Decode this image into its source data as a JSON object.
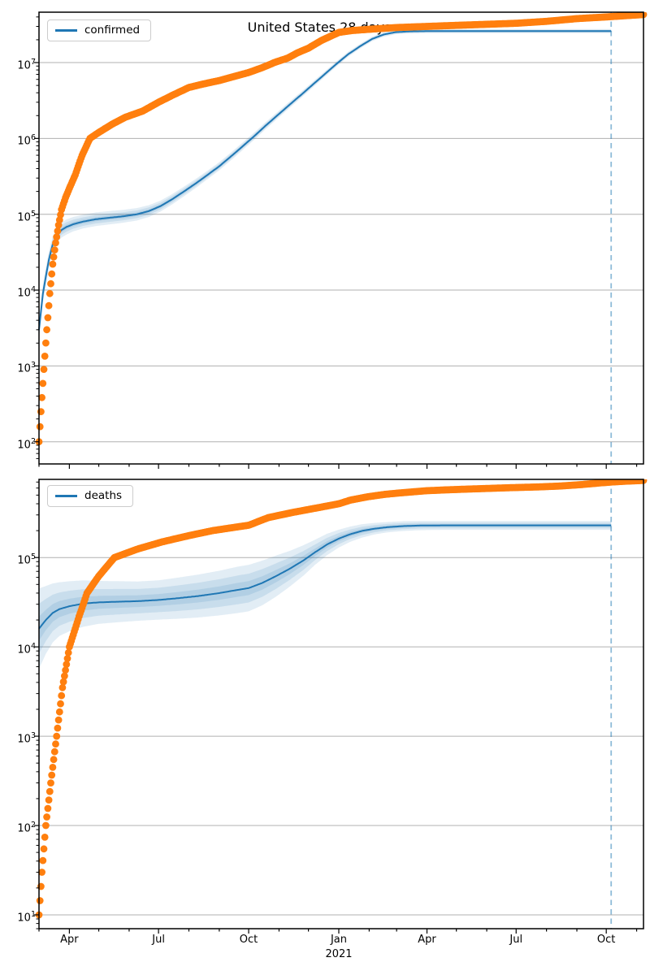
{
  "title": "United States 28 days",
  "colors": {
    "actual": "#ff7f0e",
    "model": "#1f77b4",
    "band": "#1f77b4",
    "grid": "#b0b0b0",
    "vline": "#1f77b4",
    "spine": "#000000"
  },
  "x_axis": {
    "domain": [
      "2020-03-01",
      "2021-11-08"
    ],
    "vline_date": "2021-10-06",
    "ticks": [
      {
        "date": "2020-04-01",
        "label": "Apr"
      },
      {
        "date": "2020-07-01",
        "label": "Jul"
      },
      {
        "date": "2020-10-01",
        "label": "Oct"
      },
      {
        "date": "2021-01-01",
        "label": "Jan",
        "sublabel": "2021"
      },
      {
        "date": "2021-04-01",
        "label": "Apr"
      },
      {
        "date": "2021-07-01",
        "label": "Jul"
      },
      {
        "date": "2021-10-01",
        "label": "Oct"
      }
    ]
  },
  "chart_data": [
    {
      "type": "line+scatter",
      "name": "confirmed",
      "legend": "confirmed",
      "ylog": true,
      "ylim": [
        51,
        46200000
      ],
      "yticks": [
        {
          "exp": 7,
          "label": "10⁷"
        },
        {
          "exp": 6,
          "label": "10⁶"
        },
        {
          "exp": 5,
          "label": "10⁵"
        },
        {
          "exp": 4,
          "label": "10⁴"
        },
        {
          "exp": 3,
          "label": "10³"
        },
        {
          "exp": 2,
          "label": "10²"
        }
      ],
      "actual_series": {
        "name": "confirmed reported (dots)",
        "points": [
          [
            "2020-03-01",
            100
          ],
          [
            "2020-03-03",
            250
          ],
          [
            "2020-03-06",
            900
          ],
          [
            "2020-03-09",
            3000
          ],
          [
            "2020-03-12",
            9000
          ],
          [
            "2020-03-15",
            22000
          ],
          [
            "2020-03-18",
            42000
          ],
          [
            "2020-03-21",
            72000
          ],
          [
            "2020-03-24",
            115000
          ],
          [
            "2020-03-28",
            165000
          ],
          [
            "2020-04-01",
            220000
          ],
          [
            "2020-04-07",
            330000
          ],
          [
            "2020-04-14",
            600000
          ],
          [
            "2020-04-22",
            1000000
          ],
          [
            "2020-05-01",
            1200000
          ],
          [
            "2020-05-15",
            1550000
          ],
          [
            "2020-05-28",
            1900000
          ],
          [
            "2020-06-15",
            2300000
          ],
          [
            "2020-07-01",
            3000000
          ],
          [
            "2020-07-15",
            3700000
          ],
          [
            "2020-08-01",
            4700000
          ],
          [
            "2020-08-15",
            5200000
          ],
          [
            "2020-09-01",
            5800000
          ],
          [
            "2020-09-15",
            6500000
          ],
          [
            "2020-10-01",
            7400000
          ],
          [
            "2020-10-15",
            8600000
          ],
          [
            "2020-10-27",
            10000000
          ],
          [
            "2020-11-10",
            11500000
          ],
          [
            "2020-11-20",
            13500000
          ],
          [
            "2020-12-01",
            15500000
          ],
          [
            "2020-12-14",
            19500000
          ],
          [
            "2021-01-01",
            25000000
          ],
          [
            "2021-01-15",
            26500000
          ],
          [
            "2021-02-01",
            27500000
          ],
          [
            "2021-03-01",
            29000000
          ],
          [
            "2021-04-01",
            30000000
          ],
          [
            "2021-05-01",
            31000000
          ],
          [
            "2021-06-01",
            32000000
          ],
          [
            "2021-07-01",
            33000000
          ],
          [
            "2021-08-01",
            35000000
          ],
          [
            "2021-09-01",
            38000000
          ],
          [
            "2021-10-01",
            40000000
          ],
          [
            "2021-10-20",
            41500000
          ],
          [
            "2021-11-08",
            43000000
          ]
        ]
      },
      "model_series": {
        "name": "confirmed model fit (line with confidence band)",
        "points": [
          [
            "2020-03-01",
            3000,
            0.13
          ],
          [
            "2020-03-05",
            9000,
            0.12
          ],
          [
            "2020-03-08",
            15000,
            0.12
          ],
          [
            "2020-03-11",
            25000,
            0.11
          ],
          [
            "2020-03-15",
            40000,
            0.105
          ],
          [
            "2020-03-19",
            52000,
            0.1
          ],
          [
            "2020-03-24",
            62000,
            0.1
          ],
          [
            "2020-03-29",
            68000,
            0.1
          ],
          [
            "2020-04-05",
            74000,
            0.095
          ],
          [
            "2020-04-15",
            80000,
            0.09
          ],
          [
            "2020-04-28",
            86000,
            0.09
          ],
          [
            "2020-05-12",
            90000,
            0.088
          ],
          [
            "2020-05-26",
            94000,
            0.085
          ],
          [
            "2020-06-09",
            100000,
            0.082
          ],
          [
            "2020-06-21",
            110000,
            0.078
          ],
          [
            "2020-07-03",
            128000,
            0.072
          ],
          [
            "2020-07-15",
            158000,
            0.068
          ],
          [
            "2020-07-27",
            200000,
            0.064
          ],
          [
            "2020-08-08",
            255000,
            0.06
          ],
          [
            "2020-08-20",
            330000,
            0.056
          ],
          [
            "2020-09-01",
            430000,
            0.054
          ],
          [
            "2020-09-13",
            580000,
            0.052
          ],
          [
            "2020-09-25",
            790000,
            0.05
          ],
          [
            "2020-10-07",
            1080000,
            0.048
          ],
          [
            "2020-10-19",
            1500000,
            0.046
          ],
          [
            "2020-10-31",
            2050000,
            0.044
          ],
          [
            "2020-11-12",
            2800000,
            0.042
          ],
          [
            "2020-11-24",
            3800000,
            0.04
          ],
          [
            "2020-12-06",
            5200000,
            0.038
          ],
          [
            "2020-12-18",
            7100000,
            0.036
          ],
          [
            "2020-12-30",
            9700000,
            0.035
          ],
          [
            "2021-01-11",
            13000000,
            0.033
          ],
          [
            "2021-01-23",
            16500000,
            0.031
          ],
          [
            "2021-02-04",
            20500000,
            0.03
          ],
          [
            "2021-02-16",
            23500000,
            0.029
          ],
          [
            "2021-02-28",
            25200000,
            0.028
          ],
          [
            "2021-03-14",
            25800000,
            0.028
          ],
          [
            "2021-04-01",
            26000000,
            0.028
          ],
          [
            "2021-10-06",
            26000000,
            0.028
          ]
        ]
      }
    },
    {
      "type": "line+scatter",
      "name": "deaths",
      "legend": "deaths",
      "ylog": true,
      "ylim": [
        7,
        750000
      ],
      "yticks": [
        {
          "exp": 5,
          "label": "10⁵"
        },
        {
          "exp": 4,
          "label": "10⁴"
        },
        {
          "exp": 3,
          "label": "10³"
        },
        {
          "exp": 2,
          "label": "10²"
        },
        {
          "exp": 1,
          "label": "10¹"
        }
      ],
      "actual_series": {
        "name": "deaths reported (dots)",
        "points": [
          [
            "2020-03-01",
            10
          ],
          [
            "2020-03-04",
            30
          ],
          [
            "2020-03-08",
            100
          ],
          [
            "2020-03-13",
            300
          ],
          [
            "2020-03-19",
            1000
          ],
          [
            "2020-03-25",
            3500
          ],
          [
            "2020-04-01",
            10000
          ],
          [
            "2020-04-07",
            16000
          ],
          [
            "2020-04-11",
            22000
          ],
          [
            "2020-04-19",
            40000
          ],
          [
            "2020-05-01",
            62000
          ],
          [
            "2020-05-17",
            100000
          ],
          [
            "2020-06-10",
            125000
          ],
          [
            "2020-07-05",
            150000
          ],
          [
            "2020-07-31",
            175000
          ],
          [
            "2020-08-25",
            200000
          ],
          [
            "2020-09-19",
            220000
          ],
          [
            "2020-10-01",
            230000
          ],
          [
            "2020-10-21",
            280000
          ],
          [
            "2020-11-15",
            320000
          ],
          [
            "2020-12-10",
            360000
          ],
          [
            "2021-01-01",
            400000
          ],
          [
            "2021-01-13",
            440000
          ],
          [
            "2021-01-31",
            480000
          ],
          [
            "2021-02-17",
            510000
          ],
          [
            "2021-03-05",
            530000
          ],
          [
            "2021-04-01",
            560000
          ],
          [
            "2021-04-20",
            572000
          ],
          [
            "2021-05-15",
            585000
          ],
          [
            "2021-06-10",
            598000
          ],
          [
            "2021-07-01",
            608000
          ],
          [
            "2021-07-25",
            618000
          ],
          [
            "2021-08-15",
            632000
          ],
          [
            "2021-09-05",
            655000
          ],
          [
            "2021-09-25",
            685000
          ],
          [
            "2021-10-06",
            700000
          ],
          [
            "2021-10-20",
            715000
          ],
          [
            "2021-11-08",
            730000
          ]
        ]
      },
      "model_series": {
        "name": "deaths model fit (line with confidence band)",
        "points": [
          [
            "2020-03-01",
            16000,
            0.45
          ],
          [
            "2020-03-08",
            20000,
            0.38
          ],
          [
            "2020-03-15",
            24000,
            0.33
          ],
          [
            "2020-03-22",
            26500,
            0.3
          ],
          [
            "2020-04-01",
            28500,
            0.28
          ],
          [
            "2020-04-15",
            30500,
            0.26
          ],
          [
            "2020-05-01",
            31500,
            0.24
          ],
          [
            "2020-05-20",
            32000,
            0.23
          ],
          [
            "2020-06-10",
            32500,
            0.22
          ],
          [
            "2020-07-01",
            33500,
            0.22
          ],
          [
            "2020-07-20",
            35000,
            0.23
          ],
          [
            "2020-08-10",
            37000,
            0.24
          ],
          [
            "2020-09-01",
            40000,
            0.25
          ],
          [
            "2020-09-20",
            43500,
            0.26
          ],
          [
            "2020-10-01",
            45500,
            0.26
          ],
          [
            "2020-10-15",
            52000,
            0.25
          ],
          [
            "2020-10-29",
            62000,
            0.23
          ],
          [
            "2020-11-12",
            75000,
            0.2
          ],
          [
            "2020-11-26",
            93000,
            0.17
          ],
          [
            "2020-12-08",
            115000,
            0.14
          ],
          [
            "2020-12-20",
            140000,
            0.12
          ],
          [
            "2021-01-01",
            163000,
            0.1
          ],
          [
            "2021-01-13",
            183000,
            0.085
          ],
          [
            "2021-01-25",
            199000,
            0.075
          ],
          [
            "2021-02-06",
            210000,
            0.065
          ],
          [
            "2021-02-20",
            219000,
            0.058
          ],
          [
            "2021-03-08",
            225000,
            0.055
          ],
          [
            "2021-03-24",
            228000,
            0.052
          ],
          [
            "2021-04-15",
            229000,
            0.05
          ],
          [
            "2021-06-01",
            229000,
            0.05
          ],
          [
            "2021-10-06",
            229000,
            0.05
          ]
        ]
      }
    }
  ]
}
